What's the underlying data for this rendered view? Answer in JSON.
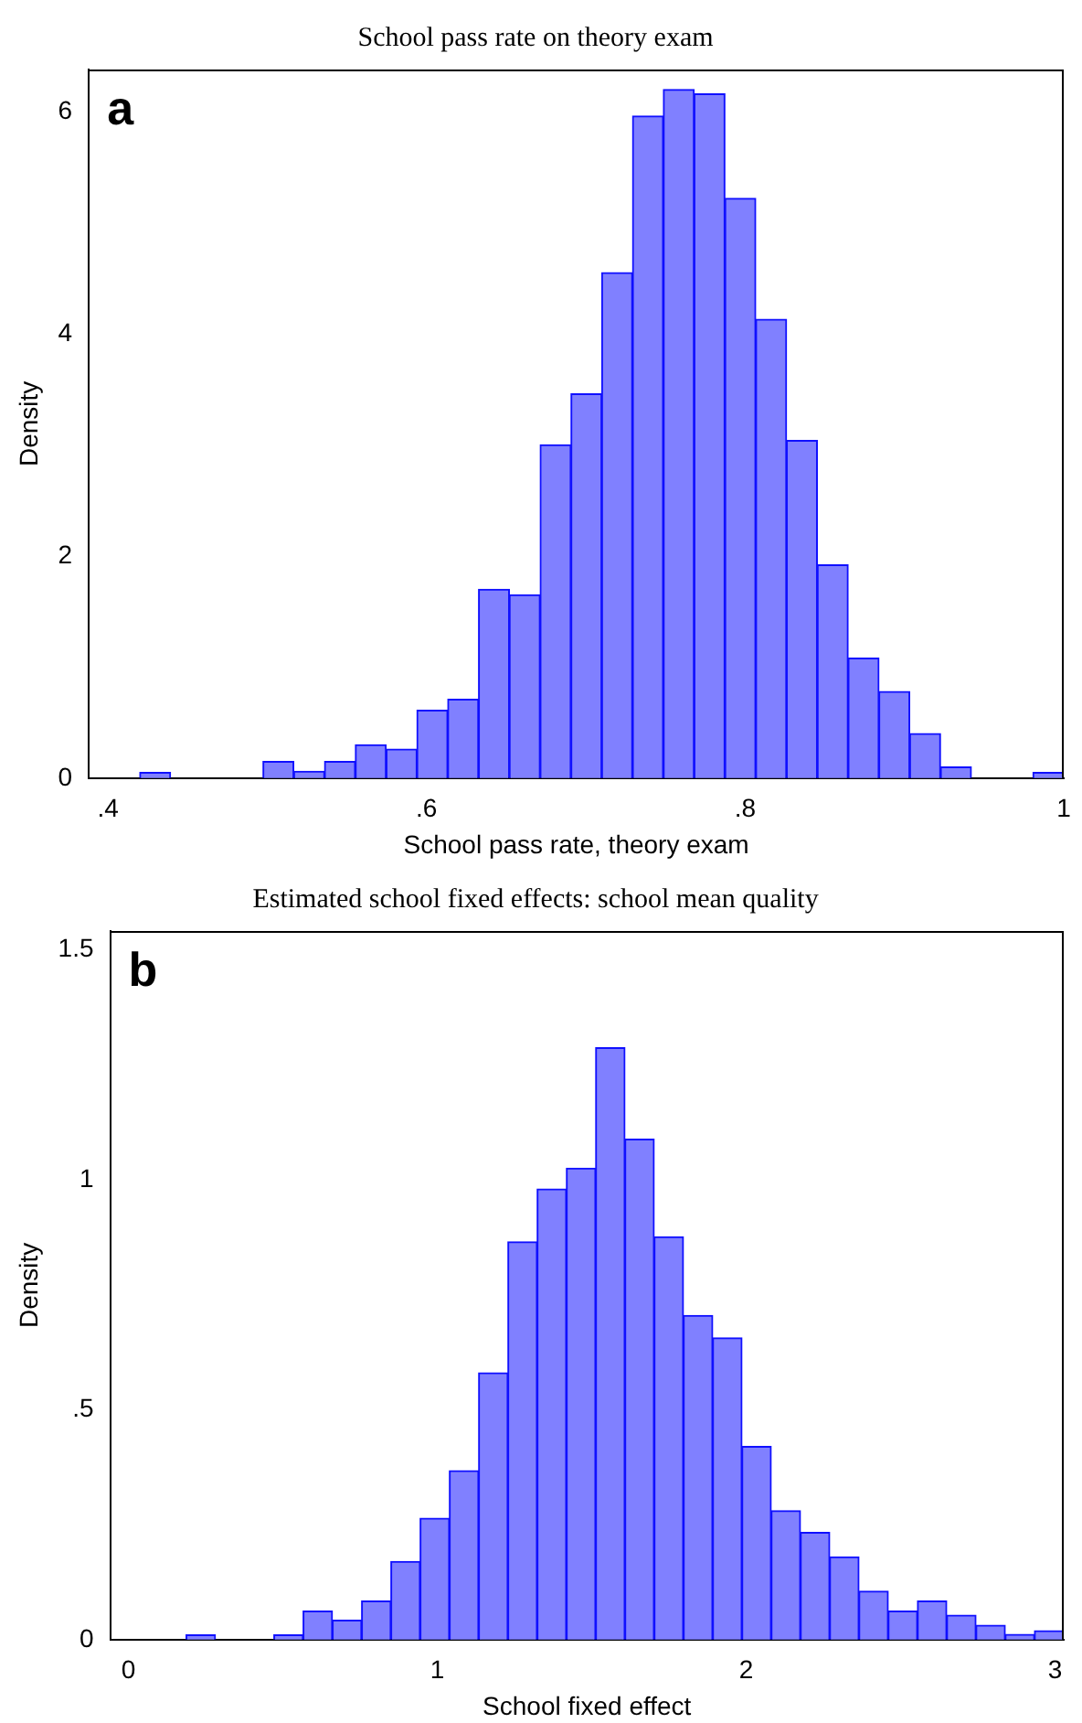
{
  "chart_data": [
    {
      "type": "histogram",
      "title": "School pass rate on theory exam",
      "xlabel": "School pass rate, theory exam",
      "ylabel": "Density",
      "annotations": [
        "a"
      ],
      "bins": [
        0.42,
        0.4393,
        0.4587,
        0.478,
        0.4973,
        0.5167,
        0.536,
        0.5553,
        0.5747,
        0.594,
        0.6133,
        0.6327,
        0.652,
        0.6713,
        0.6907,
        0.71,
        0.7293,
        0.7487,
        0.768,
        0.7873,
        0.8067,
        0.826,
        0.8453,
        0.8647,
        0.884,
        0.9033,
        0.9227,
        0.942,
        0.9613,
        0.9807,
        1.0
      ],
      "values": [
        0.05,
        0,
        0,
        0,
        0.15,
        0.06,
        0.15,
        0.3,
        0.26,
        0.61,
        0.71,
        1.7,
        1.65,
        3.0,
        3.46,
        4.55,
        5.96,
        6.2,
        6.16,
        5.22,
        4.13,
        3.04,
        1.92,
        1.08,
        0.78,
        0.4,
        0.1,
        0,
        0,
        0.05
      ],
      "color": "#8080ff",
      "xlim": [
        0.388,
        1.0
      ],
      "ylim": [
        0,
        6.38
      ],
      "xticks": [
        {
          "value": 0.4,
          "label": ".4"
        },
        {
          "value": 0.6,
          "label": ".6"
        },
        {
          "value": 0.8,
          "label": ".8"
        },
        1
      ],
      "yticks": [
        0,
        2,
        4,
        6
      ],
      "grid": false
    },
    {
      "type": "histogram",
      "title": "Estimated school fixed effects: school mean quality",
      "xlabel": "School fixed effect",
      "ylabel": "Density",
      "annotations": [
        "b"
      ],
      "bins": [
        0.187,
        0.2817,
        0.3764,
        0.4711,
        0.5658,
        0.6605,
        0.7552,
        0.8499,
        0.9446,
        1.0393,
        1.134,
        1.2287,
        1.3234,
        1.4181,
        1.5128,
        1.6075,
        1.7022,
        1.7969,
        1.8916,
        1.9863,
        2.081,
        2.1757,
        2.2704,
        2.3651,
        2.4598,
        2.5545,
        2.6492,
        2.7439,
        2.8386,
        2.9333,
        3.028
      ],
      "values": [
        0.01,
        0,
        0,
        0.01,
        0.062,
        0.042,
        0.084,
        0.17,
        0.264,
        0.367,
        0.58,
        0.865,
        0.98,
        1.025,
        1.287,
        1.088,
        0.876,
        0.705,
        0.656,
        0.42,
        0.28,
        0.233,
        0.18,
        0.105,
        0.062,
        0.084,
        0.053,
        0.031,
        0.011,
        0.019
      ],
      "color": "#8080ff",
      "xlim": [
        -0.059,
        3.028
      ],
      "ylim": [
        0,
        1.541
      ],
      "xticks": [
        0,
        1,
        2,
        3
      ],
      "yticks": [
        0,
        {
          "value": 0.5,
          "label": ".5"
        },
        1,
        1.5
      ],
      "grid": false
    }
  ]
}
